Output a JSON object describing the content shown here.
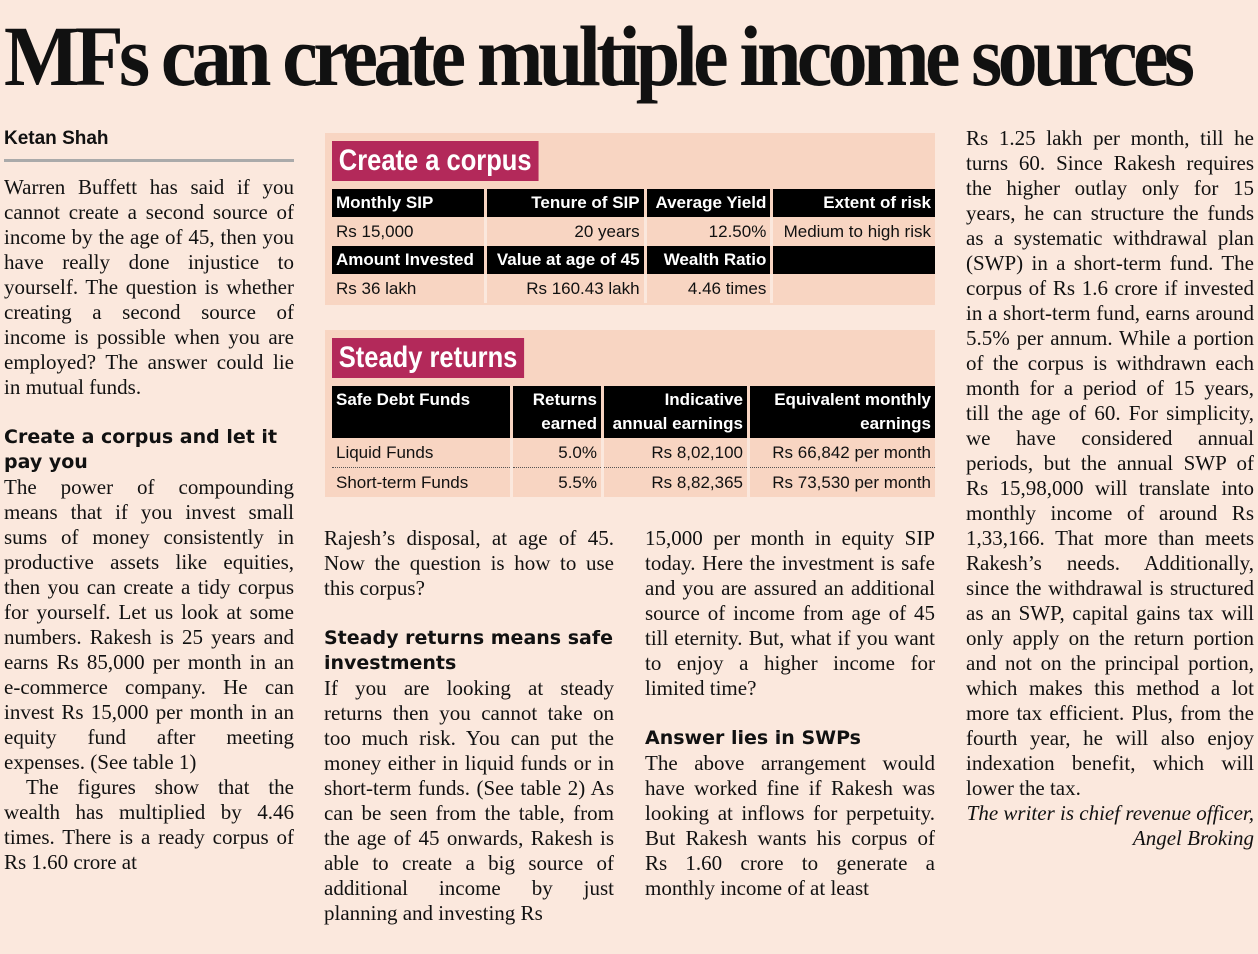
{
  "headline": "MFs can create multiple income sources",
  "byline": "Ketan Shah",
  "col1": {
    "p1": "Warren Buffett has said if you cannot create a second source of income by the age of 45, then you have really done injustice to yourself. The question is whether creating a second source of income is possible when you are employed? The answer could lie in mutual funds.",
    "h1": "Create a corpus and let it pay you",
    "p2": "The power of compounding means that if you invest small sums of money consistently in productive assets like equities, then you can create a tidy corpus for yourself. Let us look at some numbers. Rakesh is 25 years and earns Rs 85,000 per month in an e-commerce company. He can invest Rs 15,000 per month in an equity fund after meeting expenses. (See table 1)",
    "p3": "The figures show that the wealth has multiplied by 4.46 times. There is a ready corpus of Rs 1.60 crore at"
  },
  "col2": {
    "p1": "Rajesh’s disposal, at age of 45. Now the question is how to use this corpus?",
    "h1": "Steady returns means safe investments",
    "p2": "If you are looking at steady returns then you cannot take on too much risk. You can put the money either in liquid funds or in short-term funds. (See table 2) As can be seen from the table, from the age of 45 onwards, Rakesh is able to create a big source of additional income by just planning and investing Rs"
  },
  "col3": {
    "p1": "15,000 per month in equity SIP today. Here the investment is safe and you are assured an additional source of income from age of 45 till eternity. But, what if you want to enjoy a higher income for limited time?",
    "h1": "Answer lies in SWPs",
    "p2": "The above arrangement would have worked fine if Rakesh was looking at inflows for perpetuity. But Rakesh wants his corpus of Rs 1.60 crore to generate a monthly income of at least"
  },
  "col4": {
    "p1": "Rs 1.25 lakh per month, till he turns 60. Since Rakesh requires the higher outlay only for 15 years, he can structure the funds as a systematic withdrawal plan (SWP) in a short-term fund. The corpus of Rs 1.6 crore if invested in a short-term fund, earns around 5.5% per annum. While a portion of the corpus is withdrawn each month for a period of 15 years, till the age of 60. For simplicity, we have considered annual periods, but the annual SWP of Rs 15,98,000 will translate into monthly income of around Rs 1,33,166. That more than meets Rakesh’s needs. Additionally, since the withdrawal is structured as an SWP, capital gains tax will only apply on the return portion and not on the principal portion, which makes this method a lot more tax efficient. Plus, from the fourth year, he will also enjoy indexation benefit, which will lower the tax.",
    "sign": "The writer is chief revenue officer, Angel Broking"
  },
  "table1": {
    "title": "Create a corpus",
    "h1": [
      "Monthly SIP",
      "Tenure of SIP",
      "Average Yield",
      "Extent of risk"
    ],
    "r1": [
      "Rs 15,000",
      "20 years",
      "12.50%",
      "Medium to high risk"
    ],
    "h2": [
      "Amount Invested",
      "Value at age of 45",
      "Wealth Ratio",
      ""
    ],
    "r2": [
      "Rs 36 lakh",
      "Rs 160.43 lakh",
      "4.46 times",
      ""
    ]
  },
  "table2": {
    "title": "Steady returns",
    "headers": [
      "Safe Debt Funds",
      "Returns earned",
      "Indicative annual earnings",
      "Equivalent monthly earnings"
    ],
    "rows": [
      [
        "Liquid Funds",
        "5.0%",
        "Rs 8,02,100",
        "Rs 66,842 per month"
      ],
      [
        "Short-term Funds",
        "5.5%",
        "Rs 8,82,365",
        "Rs 73,530 per month"
      ]
    ]
  },
  "colors": {
    "background": "#fbe8dd",
    "panel": "#f8d5c2",
    "accent": "#b3295a"
  }
}
